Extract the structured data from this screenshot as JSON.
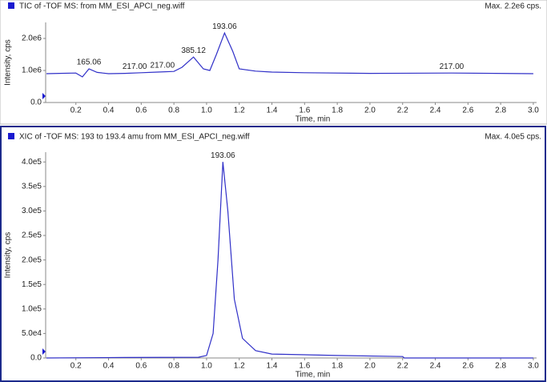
{
  "chart_data": [
    {
      "type": "line",
      "title": "TIC of -TOF MS: from MM_ESI_APCI_neg.wiff",
      "max_label": "Max. 2.2e6 cps.",
      "xlabel": "Time, min",
      "ylabel": "Intensity, cps",
      "color": "#3030c8",
      "x": [
        0.02,
        0.1,
        0.2,
        0.24,
        0.28,
        0.33,
        0.4,
        0.5,
        0.6,
        0.7,
        0.8,
        0.85,
        0.92,
        0.98,
        1.02,
        1.06,
        1.11,
        1.16,
        1.2,
        1.3,
        1.4,
        1.6,
        2.0,
        2.5,
        3.0
      ],
      "values": [
        900000,
        910000,
        920000,
        800000,
        1050000,
        940000,
        900000,
        910000,
        930000,
        950000,
        970000,
        1100000,
        1420000,
        1050000,
        1000000,
        1500000,
        2170000,
        1600000,
        1050000,
        980000,
        950000,
        930000,
        910000,
        920000,
        900000
      ],
      "xlim": [
        0.015,
        3.02
      ],
      "ylim": [
        0,
        2500000
      ],
      "xticks": [
        0.2,
        0.4,
        0.6,
        0.8,
        {
          "value": 1,
          "label": "1.0"
        },
        1.2,
        1.4,
        1.6,
        1.8,
        {
          "value": 2,
          "label": "2.0"
        },
        2.2,
        2.4,
        2.6,
        2.8,
        {
          "value": 3,
          "label": "3.0"
        }
      ],
      "yticks": [
        {
          "value": 0,
          "label": "0.0"
        },
        {
          "value": 1000000,
          "label": "1.0e6"
        },
        {
          "value": 2000000,
          "label": "2.0e6"
        }
      ],
      "annotations": [
        {
          "text": "165.06",
          "x": 0.28
        },
        {
          "text": "217.00",
          "x": 0.56
        },
        {
          "text": "217.00",
          "x": 0.73
        },
        {
          "text": "385.12",
          "x": 0.92
        },
        {
          "text": "193.06",
          "x": 1.11
        },
        {
          "text": "217.00",
          "x": 2.5
        }
      ]
    },
    {
      "type": "line",
      "title": "XIC of -TOF MS: 193 to 193.4 amu from MM_ESI_APCI_neg.wiff",
      "max_label": "Max. 4.0e5 cps.",
      "xlabel": "Time, min",
      "ylabel": "Intensity, cps",
      "color": "#3030c8",
      "x": [
        0.02,
        0.5,
        0.95,
        1.0,
        1.04,
        1.07,
        1.1,
        1.13,
        1.17,
        1.22,
        1.3,
        1.4,
        1.8,
        2.2,
        2.21,
        3.0
      ],
      "values": [
        0,
        1000,
        1500,
        5000,
        50000,
        200000,
        400000,
        300000,
        120000,
        40000,
        15000,
        8000,
        5000,
        3000,
        0,
        0
      ],
      "xlim": [
        0.015,
        3.02
      ],
      "ylim": [
        0,
        420000
      ],
      "xticks": [
        0.2,
        0.4,
        0.6,
        0.8,
        {
          "value": 1,
          "label": "1.0"
        },
        1.2,
        1.4,
        1.6,
        1.8,
        {
          "value": 2,
          "label": "2.0"
        },
        2.2,
        2.4,
        2.6,
        2.8,
        {
          "value": 3,
          "label": "3.0"
        }
      ],
      "yticks": [
        {
          "value": 0,
          "label": "0.0"
        },
        {
          "value": 50000,
          "label": "5.0e4"
        },
        {
          "value": 100000,
          "label": "1.0e5"
        },
        {
          "value": 150000,
          "label": "1.5e5"
        },
        {
          "value": 200000,
          "label": "2.0e5"
        },
        {
          "value": 250000,
          "label": "2.5e5"
        },
        {
          "value": 300000,
          "label": "3.0e5"
        },
        {
          "value": 350000,
          "label": "3.5e5"
        },
        {
          "value": 400000,
          "label": "4.0e5"
        }
      ],
      "annotations": [
        {
          "text": "193.06",
          "x": 1.1
        }
      ]
    }
  ]
}
